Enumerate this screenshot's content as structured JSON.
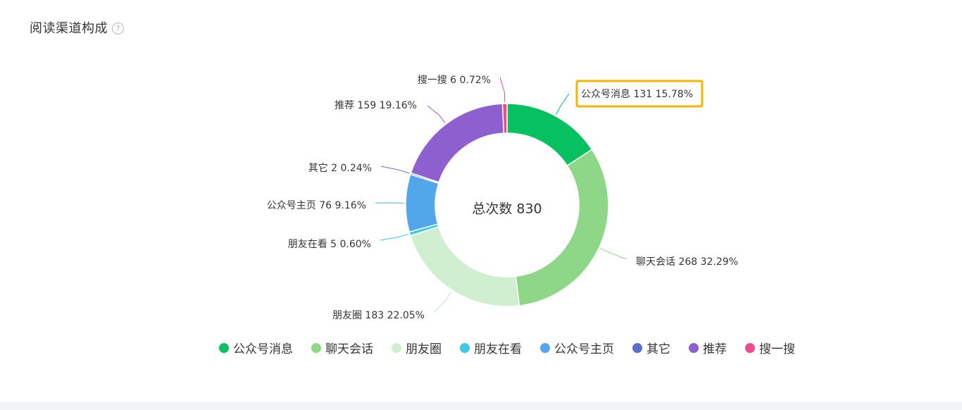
{
  "header": {
    "title": "阅读渠道构成",
    "help_icon": "help-circle-icon",
    "help_glyph": "?"
  },
  "chart_data": {
    "type": "pie",
    "donut": true,
    "center_label": "总次数 830",
    "total": 830,
    "legend_position": "bottom",
    "slices": [
      {
        "name": "公众号消息",
        "value": 131,
        "percent": "15.78%",
        "color": "#07c160"
      },
      {
        "name": "聊天会话",
        "value": 268,
        "percent": "32.29%",
        "color": "#8ed688"
      },
      {
        "name": "朋友圈",
        "value": 183,
        "percent": "22.05%",
        "color": "#d0efd0"
      },
      {
        "name": "朋友在看",
        "value": 5,
        "percent": "0.60%",
        "color": "#3ec9e2"
      },
      {
        "name": "公众号主页",
        "value": 76,
        "percent": "9.16%",
        "color": "#52a7ea"
      },
      {
        "name": "其它",
        "value": 2,
        "percent": "0.24%",
        "color": "#5b6ccb"
      },
      {
        "name": "推荐",
        "value": 159,
        "percent": "19.16%",
        "color": "#8d5fcf"
      },
      {
        "name": "搜一搜",
        "value": 6,
        "percent": "0.72%",
        "color": "#ec4c8b"
      }
    ],
    "highlighted_slice": "公众号消息",
    "highlight_color": "#f3b500"
  }
}
